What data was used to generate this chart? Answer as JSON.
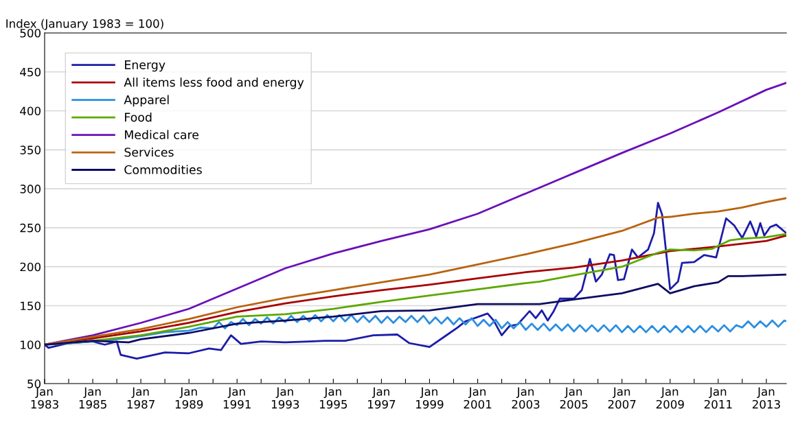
{
  "chart_data": {
    "type": "line",
    "ylabel": "Index (January 1983 = 100)",
    "xlim": [
      "1983-01",
      "2013-11"
    ],
    "ylim": [
      50,
      500
    ],
    "yticks": [
      50,
      100,
      150,
      200,
      250,
      300,
      350,
      400,
      450,
      500
    ],
    "xticks": [
      {
        "value": "1983-01",
        "label": "Jan\n1983"
      },
      {
        "value": "1984-01",
        "label": null
      },
      {
        "value": "1985-01",
        "label": "Jan\n1985"
      },
      {
        "value": "1986-01",
        "label": null
      },
      {
        "value": "1987-01",
        "label": "Jan\n1987"
      },
      {
        "value": "1988-01",
        "label": null
      },
      {
        "value": "1989-01",
        "label": "Jan\n1989"
      },
      {
        "value": "1990-01",
        "label": null
      },
      {
        "value": "1991-01",
        "label": "Jan\n1991"
      },
      {
        "value": "1992-01",
        "label": null
      },
      {
        "value": "1993-01",
        "label": "Jan\n1993"
      },
      {
        "value": "1994-01",
        "label": null
      },
      {
        "value": "1995-01",
        "label": "Jan\n1995"
      },
      {
        "value": "1996-01",
        "label": null
      },
      {
        "value": "1997-01",
        "label": "Jan\n1997"
      },
      {
        "value": "1998-01",
        "label": null
      },
      {
        "value": "1999-01",
        "label": "Jan\n1999"
      },
      {
        "value": "2000-01",
        "label": null
      },
      {
        "value": "2001-01",
        "label": "Jan\n2001"
      },
      {
        "value": "2002-01",
        "label": null
      },
      {
        "value": "2003-01",
        "label": "Jan\n2003"
      },
      {
        "value": "2004-01",
        "label": null
      },
      {
        "value": "2005-01",
        "label": "Jan\n2005"
      },
      {
        "value": "2006-01",
        "label": null
      },
      {
        "value": "2007-01",
        "label": "Jan\n2007"
      },
      {
        "value": "2008-01",
        "label": null
      },
      {
        "value": "2009-01",
        "label": "Jan\n2009"
      },
      {
        "value": "2010-01",
        "label": null
      },
      {
        "value": "2011-01",
        "label": "Jan\n2011"
      },
      {
        "value": "2012-01",
        "label": null
      },
      {
        "value": "2013-01",
        "label": "Jan\n2013"
      }
    ],
    "grid": "y",
    "legend": "top left",
    "marker": "none",
    "line_style": "solid",
    "series": [
      {
        "name": "Energy",
        "color": "#1c1ca8",
        "x": [
          "1983-01",
          "1983-03",
          "1984-01",
          "1985-01",
          "1985-07",
          "1986-01",
          "1986-03",
          "1986-11",
          "1988-01",
          "1989-01",
          "1989-11",
          "1990-05",
          "1990-10",
          "1991-03",
          "1992-01",
          "1993-01",
          "1994-01",
          "1994-09",
          "1995-07",
          "1996-09",
          "1997-09",
          "1998-03",
          "1999-01",
          "1999-10",
          "2000-03",
          "2000-07",
          "2001-06",
          "2001-09",
          "2002-01",
          "2002-05",
          "2002-09",
          "2003-03",
          "2003-06",
          "2003-09",
          "2003-12",
          "2004-03",
          "2004-06",
          "2005-01",
          "2005-05",
          "2005-09",
          "2005-12",
          "2006-03",
          "2006-07",
          "2006-09",
          "2006-11",
          "2007-02",
          "2007-06",
          "2007-09",
          "2008-02",
          "2008-05",
          "2008-07",
          "2008-09",
          "2009-01",
          "2009-05",
          "2009-07",
          "2010-01",
          "2010-06",
          "2010-12",
          "2011-05",
          "2011-09",
          "2012-01",
          "2012-05",
          "2012-08",
          "2012-10",
          "2012-12",
          "2013-03",
          "2013-06",
          "2013-11"
        ],
        "values": [
          100,
          96,
          102,
          104,
          100,
          104,
          87,
          82,
          90,
          89,
          95,
          93,
          112,
          101,
          104,
          103,
          104,
          105,
          105,
          112,
          113,
          102,
          97,
          113,
          122,
          130,
          140,
          131,
          112,
          124,
          126,
          143,
          134,
          144,
          131,
          143,
          159,
          159,
          170,
          210,
          181,
          190,
          216,
          215,
          183,
          184,
          222,
          212,
          222,
          243,
          282,
          267,
          171,
          181,
          205,
          206,
          215,
          212,
          262,
          253,
          237,
          258,
          239,
          256,
          240,
          251,
          254,
          243
        ]
      },
      {
        "name": "All items less food and energy",
        "color": "#a80000",
        "x": [
          "1983-01",
          "1985-01",
          "1987-01",
          "1989-01",
          "1991-01",
          "1993-01",
          "1995-01",
          "1997-01",
          "1999-01",
          "2001-01",
          "2003-01",
          "2005-01",
          "2007-01",
          "2009-01",
          "2011-01",
          "2013-01",
          "2013-11"
        ],
        "values": [
          100,
          108,
          117,
          128,
          142,
          153,
          162,
          170,
          177,
          185,
          193,
          199,
          208,
          220,
          226,
          233,
          240
        ]
      },
      {
        "name": "Apparel",
        "color": "#2a8ee0",
        "x": [
          "1983-01",
          "1984-01",
          "1985-01",
          "1986-01",
          "1987-01",
          "1988-01",
          "1989-01",
          "1989-07",
          "1990-01",
          "1990-04",
          "1990-07",
          "1990-10",
          "1991-01",
          "1991-04",
          "1991-07",
          "1991-10",
          "1992-01",
          "1992-04",
          "1992-07",
          "1992-10",
          "1993-01",
          "1993-04",
          "1993-07",
          "1993-10",
          "1994-01",
          "1994-04",
          "1994-07",
          "1994-10",
          "1995-01",
          "1995-04",
          "1995-07",
          "1995-10",
          "1996-01",
          "1996-04",
          "1996-07",
          "1996-10",
          "1997-01",
          "1997-04",
          "1997-07",
          "1997-10",
          "1998-01",
          "1998-04",
          "1998-07",
          "1998-10",
          "1999-01",
          "1999-04",
          "1999-07",
          "1999-10",
          "2000-01",
          "2000-04",
          "2000-07",
          "2000-10",
          "2001-01",
          "2001-04",
          "2001-07",
          "2001-10",
          "2002-01",
          "2002-04",
          "2002-07",
          "2002-10",
          "2003-01",
          "2003-04",
          "2003-07",
          "2003-10",
          "2004-01",
          "2004-04",
          "2004-07",
          "2004-10",
          "2005-01",
          "2005-04",
          "2005-07",
          "2005-10",
          "2006-01",
          "2006-04",
          "2006-07",
          "2006-10",
          "2007-01",
          "2007-04",
          "2007-07",
          "2007-10",
          "2008-01",
          "2008-04",
          "2008-07",
          "2008-10",
          "2009-01",
          "2009-04",
          "2009-07",
          "2009-10",
          "2010-01",
          "2010-04",
          "2010-07",
          "2010-10",
          "2011-01",
          "2011-04",
          "2011-07",
          "2011-10",
          "2012-01",
          "2012-04",
          "2012-07",
          "2012-10",
          "2013-01",
          "2013-04",
          "2013-07",
          "2013-10",
          "2013-11"
        ],
        "values": [
          100,
          102,
          104,
          107,
          111,
          116,
          118,
          122,
          121,
          129,
          121,
          129,
          125,
          133,
          125,
          133,
          127,
          135,
          127,
          135,
          129,
          137,
          129,
          137,
          130,
          138,
          130,
          138,
          130,
          138,
          130,
          138,
          129,
          137,
          129,
          137,
          128,
          136,
          128,
          136,
          129,
          137,
          129,
          137,
          127,
          135,
          127,
          135,
          126,
          134,
          126,
          134,
          124,
          132,
          124,
          132,
          121,
          129,
          121,
          129,
          119,
          127,
          119,
          127,
          118,
          126,
          118,
          126,
          117,
          125,
          117,
          125,
          117,
          125,
          117,
          125,
          116,
          124,
          116,
          124,
          116,
          124,
          116,
          124,
          116,
          124,
          116,
          124,
          116,
          124,
          116,
          124,
          117,
          125,
          117,
          125,
          122,
          130,
          122,
          130,
          123,
          131,
          123,
          131,
          130
        ]
      },
      {
        "name": "Food",
        "color": "#5ca800",
        "x": [
          "1983-01",
          "1985-01",
          "1987-01",
          "1989-01",
          "1991-01",
          "1993-01",
          "1995-01",
          "1997-01",
          "1999-01",
          "2001-01",
          "2003-01",
          "2003-08",
          "2005-01",
          "2007-01",
          "2008-07",
          "2009-01",
          "2010-01",
          "2010-10",
          "2011-07",
          "2012-01",
          "2013-01",
          "2013-11"
        ],
        "values": [
          100,
          105,
          112,
          123,
          136,
          139,
          146,
          155,
          163,
          171,
          179,
          181,
          189,
          200,
          218,
          222,
          221,
          223,
          234,
          236,
          238,
          242
        ]
      },
      {
        "name": "Medical care",
        "color": "#6a10b8",
        "x": [
          "1983-01",
          "1985-01",
          "1987-01",
          "1989-01",
          "1991-01",
          "1993-01",
          "1995-01",
          "1997-01",
          "1999-01",
          "2001-01",
          "2003-01",
          "2005-01",
          "2007-01",
          "2009-01",
          "2011-01",
          "2013-01",
          "2013-11"
        ],
        "values": [
          100,
          112,
          128,
          146,
          172,
          198,
          217,
          233,
          248,
          268,
          294,
          320,
          346,
          371,
          398,
          427,
          436
        ]
      },
      {
        "name": "Services",
        "color": "#b8620e",
        "x": [
          "1983-01",
          "1985-01",
          "1987-01",
          "1989-01",
          "1991-01",
          "1993-01",
          "1995-01",
          "1997-01",
          "1999-01",
          "2001-01",
          "2003-01",
          "2003-08",
          "2005-01",
          "2007-01",
          "2008-07",
          "2009-01",
          "2010-01",
          "2011-01",
          "2012-01",
          "2013-01",
          "2013-11"
        ],
        "values": [
          100,
          110,
          120,
          133,
          148,
          160,
          170,
          180,
          190,
          203,
          216,
          220,
          230,
          246,
          263,
          264,
          268,
          271,
          276,
          283,
          288
        ]
      },
      {
        "name": "Commodities",
        "color": "#0c0c62",
        "x": [
          "1983-01",
          "1985-01",
          "1986-07",
          "1987-01",
          "1989-01",
          "1991-01",
          "1993-01",
          "1995-01",
          "1997-01",
          "1999-01",
          "2001-01",
          "2003-01",
          "2003-08",
          "2005-01",
          "2007-01",
          "2008-07",
          "2009-01",
          "2010-01",
          "2011-01",
          "2011-06",
          "2012-01",
          "2013-01",
          "2013-11"
        ],
        "values": [
          100,
          105,
          103,
          107,
          115,
          127,
          131,
          136,
          143,
          144,
          152,
          152,
          152,
          158,
          166,
          178,
          166,
          175,
          180,
          188,
          188,
          189,
          190
        ]
      }
    ]
  }
}
